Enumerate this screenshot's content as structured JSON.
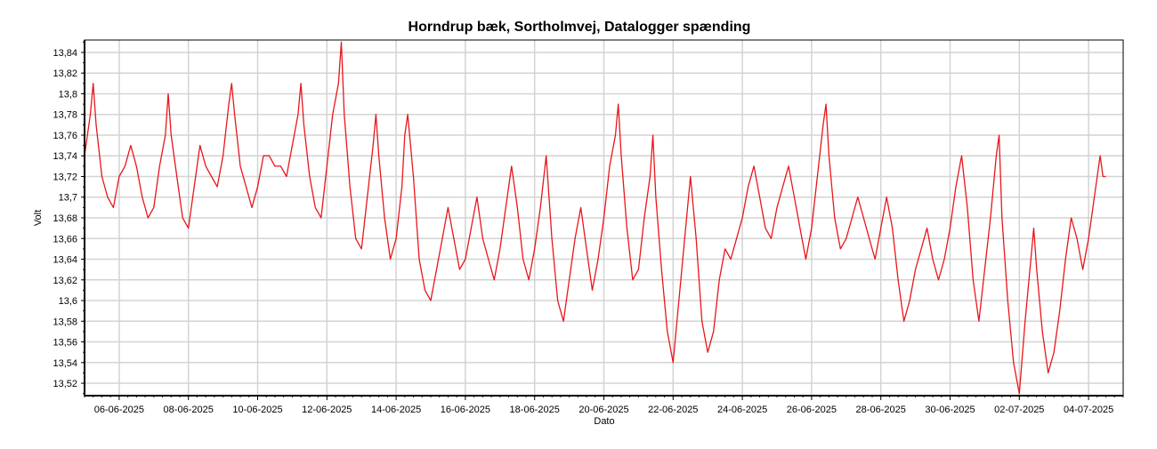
{
  "chart_data": {
    "type": "line",
    "title": "Horndrup bæk, Sortholmvej, Datalogger spænding",
    "xlabel": "Dato",
    "ylabel": "Volt",
    "x_range": [
      "2025-06-05T00:00",
      "2025-07-05T00:00"
    ],
    "ylim": [
      13.508,
      13.852
    ],
    "grid": true,
    "y_ticks": [
      "13,52",
      "13,54",
      "13,56",
      "13,58",
      "13,6",
      "13,62",
      "13,64",
      "13,66",
      "13,68",
      "13,7",
      "13,72",
      "13,74",
      "13,76",
      "13,78",
      "13,8",
      "13,82",
      "13,84"
    ],
    "y_tick_values": [
      13.52,
      13.54,
      13.56,
      13.58,
      13.6,
      13.62,
      13.64,
      13.66,
      13.68,
      13.7,
      13.72,
      13.74,
      13.76,
      13.78,
      13.8,
      13.82,
      13.84
    ],
    "x_ticks": [
      "06-06-2025",
      "08-06-2025",
      "10-06-2025",
      "12-06-2025",
      "14-06-2025",
      "16-06-2025",
      "18-06-2025",
      "20-06-2025",
      "22-06-2025",
      "24-06-2025",
      "26-06-2025",
      "28-06-2025",
      "30-06-2025",
      "02-07-2025",
      "04-07-2025"
    ],
    "x_tick_dates": [
      "2025-06-06",
      "2025-06-08",
      "2025-06-10",
      "2025-06-12",
      "2025-06-14",
      "2025-06-16",
      "2025-06-18",
      "2025-06-20",
      "2025-06-22",
      "2025-06-24",
      "2025-06-26",
      "2025-06-28",
      "2025-06-30",
      "2025-07-02",
      "2025-07-04"
    ],
    "series": [
      {
        "color": "#e8161b",
        "points": [
          [
            "2025-06-05T00:00",
            13.74
          ],
          [
            "2025-06-05T04:00",
            13.78
          ],
          [
            "2025-06-05T06:00",
            13.81
          ],
          [
            "2025-06-05T08:00",
            13.77
          ],
          [
            "2025-06-05T12:00",
            13.72
          ],
          [
            "2025-06-05T16:00",
            13.7
          ],
          [
            "2025-06-05T20:00",
            13.69
          ],
          [
            "2025-06-06T00:00",
            13.72
          ],
          [
            "2025-06-06T04:00",
            13.73
          ],
          [
            "2025-06-06T08:00",
            13.75
          ],
          [
            "2025-06-06T12:00",
            13.73
          ],
          [
            "2025-06-06T16:00",
            13.7
          ],
          [
            "2025-06-06T20:00",
            13.68
          ],
          [
            "2025-06-07T00:00",
            13.69
          ],
          [
            "2025-06-07T04:00",
            13.73
          ],
          [
            "2025-06-07T08:00",
            13.76
          ],
          [
            "2025-06-07T10:00",
            13.8
          ],
          [
            "2025-06-07T12:00",
            13.76
          ],
          [
            "2025-06-07T16:00",
            13.72
          ],
          [
            "2025-06-07T20:00",
            13.68
          ],
          [
            "2025-06-08T00:00",
            13.67
          ],
          [
            "2025-06-08T04:00",
            13.71
          ],
          [
            "2025-06-08T08:00",
            13.75
          ],
          [
            "2025-06-08T12:00",
            13.73
          ],
          [
            "2025-06-08T16:00",
            13.72
          ],
          [
            "2025-06-08T20:00",
            13.71
          ],
          [
            "2025-06-09T00:00",
            13.74
          ],
          [
            "2025-06-09T04:00",
            13.79
          ],
          [
            "2025-06-09T06:00",
            13.81
          ],
          [
            "2025-06-09T08:00",
            13.78
          ],
          [
            "2025-06-09T12:00",
            13.73
          ],
          [
            "2025-06-09T16:00",
            13.71
          ],
          [
            "2025-06-09T20:00",
            13.69
          ],
          [
            "2025-06-10T00:00",
            13.71
          ],
          [
            "2025-06-10T04:00",
            13.74
          ],
          [
            "2025-06-10T08:00",
            13.74
          ],
          [
            "2025-06-10T12:00",
            13.73
          ],
          [
            "2025-06-10T16:00",
            13.73
          ],
          [
            "2025-06-10T20:00",
            13.72
          ],
          [
            "2025-06-11T00:00",
            13.75
          ],
          [
            "2025-06-11T04:00",
            13.78
          ],
          [
            "2025-06-11T06:00",
            13.81
          ],
          [
            "2025-06-11T08:00",
            13.77
          ],
          [
            "2025-06-11T12:00",
            13.72
          ],
          [
            "2025-06-11T16:00",
            13.69
          ],
          [
            "2025-06-11T20:00",
            13.68
          ],
          [
            "2025-06-12T00:00",
            13.73
          ],
          [
            "2025-06-12T04:00",
            13.78
          ],
          [
            "2025-06-12T08:00",
            13.81
          ],
          [
            "2025-06-12T10:00",
            13.85
          ],
          [
            "2025-06-12T12:00",
            13.78
          ],
          [
            "2025-06-12T16:00",
            13.71
          ],
          [
            "2025-06-12T20:00",
            13.66
          ],
          [
            "2025-06-13T00:00",
            13.65
          ],
          [
            "2025-06-13T04:00",
            13.7
          ],
          [
            "2025-06-13T08:00",
            13.75
          ],
          [
            "2025-06-13T10:00",
            13.78
          ],
          [
            "2025-06-13T12:00",
            13.74
          ],
          [
            "2025-06-13T16:00",
            13.68
          ],
          [
            "2025-06-13T20:00",
            13.64
          ],
          [
            "2025-06-14T00:00",
            13.66
          ],
          [
            "2025-06-14T04:00",
            13.71
          ],
          [
            "2025-06-14T06:00",
            13.76
          ],
          [
            "2025-06-14T08:00",
            13.78
          ],
          [
            "2025-06-14T12:00",
            13.72
          ],
          [
            "2025-06-14T16:00",
            13.64
          ],
          [
            "2025-06-14T20:00",
            13.61
          ],
          [
            "2025-06-15T00:00",
            13.6
          ],
          [
            "2025-06-15T04:00",
            13.63
          ],
          [
            "2025-06-15T08:00",
            13.66
          ],
          [
            "2025-06-15T12:00",
            13.69
          ],
          [
            "2025-06-15T16:00",
            13.66
          ],
          [
            "2025-06-15T20:00",
            13.63
          ],
          [
            "2025-06-16T00:00",
            13.64
          ],
          [
            "2025-06-16T04:00",
            13.67
          ],
          [
            "2025-06-16T08:00",
            13.7
          ],
          [
            "2025-06-16T12:00",
            13.66
          ],
          [
            "2025-06-16T16:00",
            13.64
          ],
          [
            "2025-06-16T20:00",
            13.62
          ],
          [
            "2025-06-17T00:00",
            13.65
          ],
          [
            "2025-06-17T04:00",
            13.69
          ],
          [
            "2025-06-17T08:00",
            13.73
          ],
          [
            "2025-06-17T12:00",
            13.69
          ],
          [
            "2025-06-17T16:00",
            13.64
          ],
          [
            "2025-06-17T20:00",
            13.62
          ],
          [
            "2025-06-18T00:00",
            13.65
          ],
          [
            "2025-06-18T04:00",
            13.69
          ],
          [
            "2025-06-18T08:00",
            13.74
          ],
          [
            "2025-06-18T12:00",
            13.66
          ],
          [
            "2025-06-18T16:00",
            13.6
          ],
          [
            "2025-06-18T20:00",
            13.58
          ],
          [
            "2025-06-19T00:00",
            13.62
          ],
          [
            "2025-06-19T04:00",
            13.66
          ],
          [
            "2025-06-19T08:00",
            13.69
          ],
          [
            "2025-06-19T12:00",
            13.65
          ],
          [
            "2025-06-19T16:00",
            13.61
          ],
          [
            "2025-06-19T20:00",
            13.64
          ],
          [
            "2025-06-20T00:00",
            13.68
          ],
          [
            "2025-06-20T04:00",
            13.73
          ],
          [
            "2025-06-20T08:00",
            13.76
          ],
          [
            "2025-06-20T10:00",
            13.79
          ],
          [
            "2025-06-20T12:00",
            13.74
          ],
          [
            "2025-06-20T16:00",
            13.67
          ],
          [
            "2025-06-20T20:00",
            13.62
          ],
          [
            "2025-06-21T00:00",
            13.63
          ],
          [
            "2025-06-21T04:00",
            13.68
          ],
          [
            "2025-06-21T08:00",
            13.72
          ],
          [
            "2025-06-21T10:00",
            13.76
          ],
          [
            "2025-06-21T12:00",
            13.7
          ],
          [
            "2025-06-21T16:00",
            13.63
          ],
          [
            "2025-06-21T20:00",
            13.57
          ],
          [
            "2025-06-22T00:00",
            13.54
          ],
          [
            "2025-06-22T04:00",
            13.6
          ],
          [
            "2025-06-22T08:00",
            13.66
          ],
          [
            "2025-06-22T12:00",
            13.72
          ],
          [
            "2025-06-22T16:00",
            13.66
          ],
          [
            "2025-06-22T20:00",
            13.58
          ],
          [
            "2025-06-23T00:00",
            13.55
          ],
          [
            "2025-06-23T04:00",
            13.57
          ],
          [
            "2025-06-23T08:00",
            13.62
          ],
          [
            "2025-06-23T12:00",
            13.65
          ],
          [
            "2025-06-23T16:00",
            13.64
          ],
          [
            "2025-06-23T20:00",
            13.66
          ],
          [
            "2025-06-24T00:00",
            13.68
          ],
          [
            "2025-06-24T04:00",
            13.71
          ],
          [
            "2025-06-24T08:00",
            13.73
          ],
          [
            "2025-06-24T12:00",
            13.7
          ],
          [
            "2025-06-24T16:00",
            13.67
          ],
          [
            "2025-06-24T20:00",
            13.66
          ],
          [
            "2025-06-25T00:00",
            13.69
          ],
          [
            "2025-06-25T04:00",
            13.71
          ],
          [
            "2025-06-25T08:00",
            13.73
          ],
          [
            "2025-06-25T12:00",
            13.7
          ],
          [
            "2025-06-25T16:00",
            13.67
          ],
          [
            "2025-06-25T20:00",
            13.64
          ],
          [
            "2025-06-26T00:00",
            13.67
          ],
          [
            "2025-06-26T04:00",
            13.72
          ],
          [
            "2025-06-26T08:00",
            13.77
          ],
          [
            "2025-06-26T10:00",
            13.79
          ],
          [
            "2025-06-26T12:00",
            13.74
          ],
          [
            "2025-06-26T16:00",
            13.68
          ],
          [
            "2025-06-26T20:00",
            13.65
          ],
          [
            "2025-06-27T00:00",
            13.66
          ],
          [
            "2025-06-27T04:00",
            13.68
          ],
          [
            "2025-06-27T08:00",
            13.7
          ],
          [
            "2025-06-27T12:00",
            13.68
          ],
          [
            "2025-06-27T16:00",
            13.66
          ],
          [
            "2025-06-27T20:00",
            13.64
          ],
          [
            "2025-06-28T00:00",
            13.67
          ],
          [
            "2025-06-28T04:00",
            13.7
          ],
          [
            "2025-06-28T08:00",
            13.67
          ],
          [
            "2025-06-28T12:00",
            13.62
          ],
          [
            "2025-06-28T16:00",
            13.58
          ],
          [
            "2025-06-28T20:00",
            13.6
          ],
          [
            "2025-06-29T00:00",
            13.63
          ],
          [
            "2025-06-29T04:00",
            13.65
          ],
          [
            "2025-06-29T08:00",
            13.67
          ],
          [
            "2025-06-29T12:00",
            13.64
          ],
          [
            "2025-06-29T16:00",
            13.62
          ],
          [
            "2025-06-29T20:00",
            13.64
          ],
          [
            "2025-06-30T00:00",
            13.67
          ],
          [
            "2025-06-30T04:00",
            13.71
          ],
          [
            "2025-06-30T08:00",
            13.74
          ],
          [
            "2025-06-30T12:00",
            13.69
          ],
          [
            "2025-06-30T16:00",
            13.62
          ],
          [
            "2025-06-30T20:00",
            13.58
          ],
          [
            "2025-07-01T00:00",
            13.63
          ],
          [
            "2025-07-01T04:00",
            13.68
          ],
          [
            "2025-07-01T08:00",
            13.74
          ],
          [
            "2025-07-01T10:00",
            13.76
          ],
          [
            "2025-07-01T12:00",
            13.68
          ],
          [
            "2025-07-01T16:00",
            13.6
          ],
          [
            "2025-07-01T20:00",
            13.54
          ],
          [
            "2025-07-02T00:00",
            13.51
          ],
          [
            "2025-07-02T04:00",
            13.58
          ],
          [
            "2025-07-02T08:00",
            13.64
          ],
          [
            "2025-07-02T10:00",
            13.67
          ],
          [
            "2025-07-02T12:00",
            13.63
          ],
          [
            "2025-07-02T16:00",
            13.57
          ],
          [
            "2025-07-02T20:00",
            13.53
          ],
          [
            "2025-07-03T00:00",
            13.55
          ],
          [
            "2025-07-03T04:00",
            13.59
          ],
          [
            "2025-07-03T08:00",
            13.64
          ],
          [
            "2025-07-03T12:00",
            13.68
          ],
          [
            "2025-07-03T16:00",
            13.66
          ],
          [
            "2025-07-03T20:00",
            13.63
          ],
          [
            "2025-07-04T00:00",
            13.66
          ],
          [
            "2025-07-04T04:00",
            13.7
          ],
          [
            "2025-07-04T08:00",
            13.74
          ],
          [
            "2025-07-04T10:00",
            13.72
          ],
          [
            "2025-07-04T12:00",
            13.72
          ]
        ]
      }
    ]
  }
}
